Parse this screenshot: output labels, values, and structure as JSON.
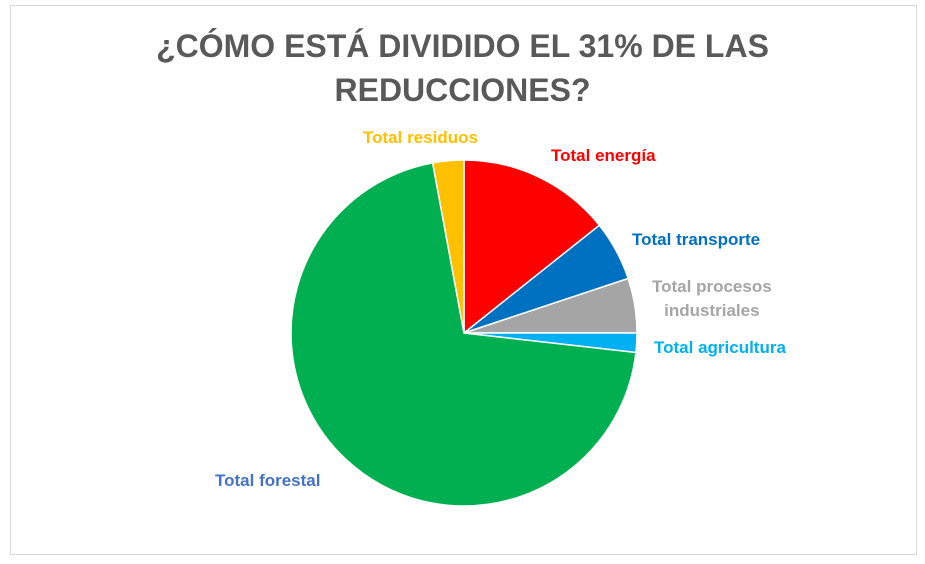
{
  "chart_data": {
    "type": "pie",
    "title_line1": "¿CÓMO ESTÁ DIVIDIDO EL 31% DE LAS",
    "title_line2": "REDUCCIONES?",
    "slices": [
      {
        "label": "Total energía",
        "value": 14.3,
        "color": "#FF0000",
        "label_color": "#FF0000"
      },
      {
        "label": "Total transporte",
        "value": 5.6,
        "color": "#0070C0",
        "label_color": "#0070C0"
      },
      {
        "label_line1": "Total procesos",
        "label_line2": "industriales",
        "value": 5.1,
        "color": "#A5A5A5",
        "label_color": "#A5A5A5"
      },
      {
        "label": "Total agricultura",
        "value": 1.8,
        "color": "#00B0F0",
        "label_color": "#00B0F0"
      },
      {
        "label": "Total forestal",
        "value": 70.3,
        "color": "#00B050",
        "label_color": "#4472C4"
      },
      {
        "label": "Total residuos",
        "value": 2.9,
        "color": "#FFC000",
        "label_color": "#FFC000"
      }
    ]
  }
}
